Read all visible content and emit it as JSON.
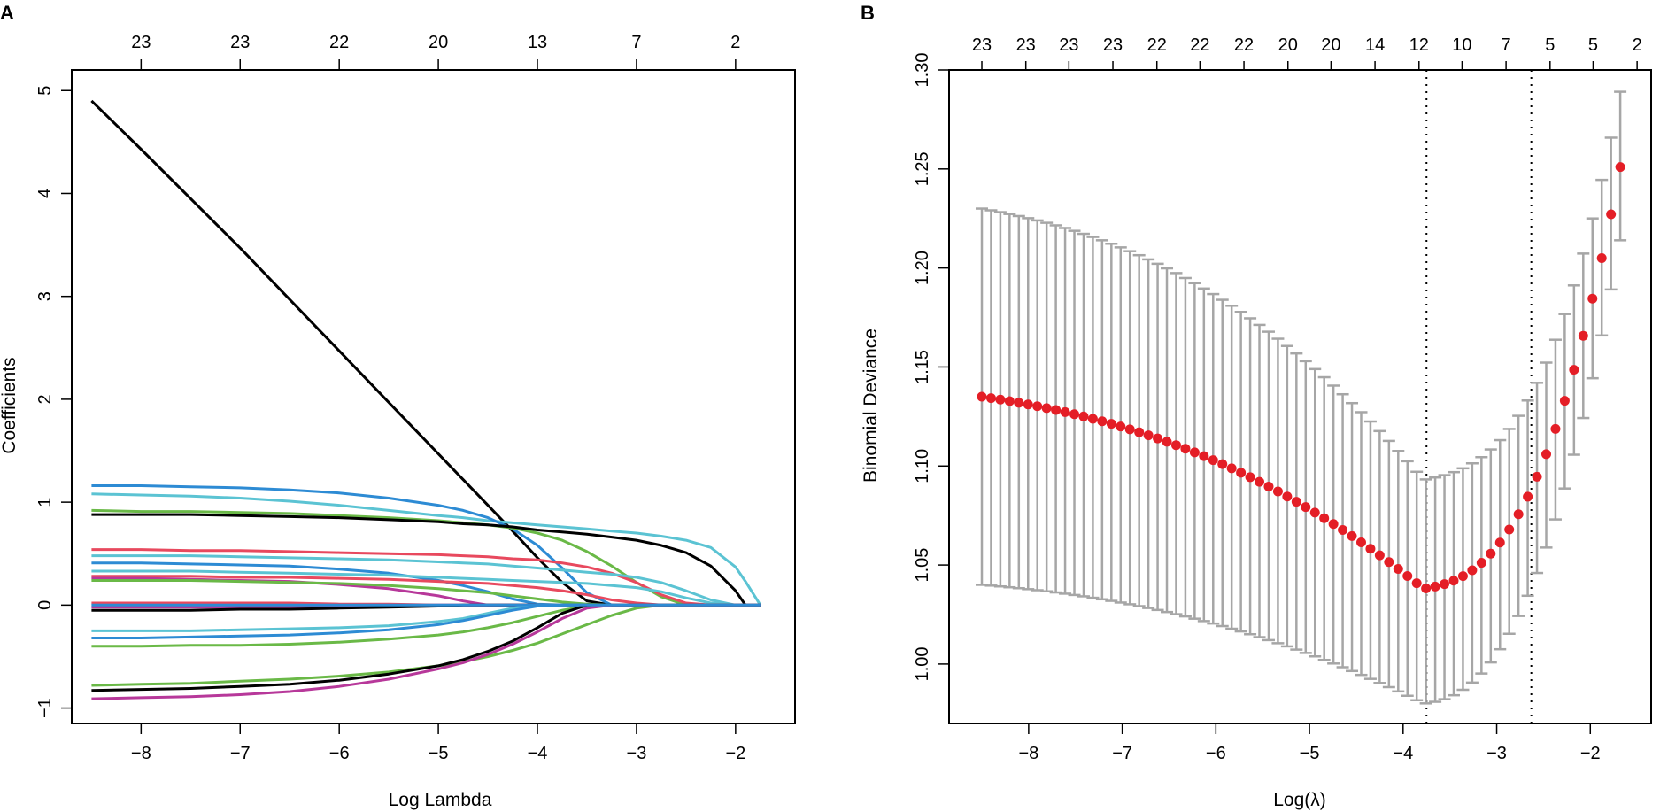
{
  "panels": {
    "a_label": "A",
    "b_label": "B"
  },
  "colors": {
    "black": "#000000",
    "red": "#e8495e",
    "green": "#6ab947",
    "blue": "#2d8bd4",
    "cyan": "#5bc3d3",
    "magenta": "#b7389a",
    "grey": "#a6a6a6",
    "point": "#e41e26"
  },
  "chart_data": [
    {
      "type": "line",
      "panel": "A",
      "title": "",
      "xlabel": "Log Lambda",
      "ylabel": "Coefficients",
      "xlim": [
        -8.7,
        -1.4
      ],
      "ylim": [
        -1.15,
        5.2
      ],
      "xticks": [
        -8,
        -7,
        -6,
        -5,
        -4,
        -3,
        -2
      ],
      "yticks": [
        -1,
        0,
        1,
        2,
        3,
        4,
        5
      ],
      "top_axis": {
        "positions": [
          -8,
          -7,
          -6,
          -5,
          -4,
          -3,
          -2
        ],
        "labels": [
          "23",
          "23",
          "22",
          "20",
          "13",
          "7",
          "2"
        ]
      },
      "x": [
        -8.5,
        -8.0,
        -7.5,
        -7.0,
        -6.5,
        -6.0,
        -5.5,
        -5.0,
        -4.75,
        -4.5,
        -4.25,
        -4.0,
        -3.75,
        -3.5,
        -3.25,
        -3.0,
        -2.75,
        -2.5,
        -2.25,
        -2.0,
        -1.9,
        -1.75
      ],
      "series": [
        {
          "name": "s1",
          "color": "black",
          "values": [
            4.9,
            4.43,
            3.95,
            3.47,
            2.97,
            2.47,
            1.97,
            1.47,
            1.22,
            0.97,
            0.72,
            0.46,
            0.22,
            0.04,
            0,
            0,
            0,
            0,
            0,
            0,
            0,
            0
          ]
        },
        {
          "name": "s2",
          "color": "cyan",
          "values": [
            1.08,
            1.07,
            1.06,
            1.04,
            1.01,
            0.97,
            0.92,
            0.87,
            0.85,
            0.82,
            0.8,
            0.78,
            0.76,
            0.74,
            0.72,
            0.7,
            0.67,
            0.63,
            0.56,
            0.37,
            0.23,
            0
          ]
        },
        {
          "name": "s3",
          "color": "blue",
          "values": [
            1.16,
            1.16,
            1.15,
            1.14,
            1.12,
            1.09,
            1.04,
            0.97,
            0.92,
            0.85,
            0.74,
            0.58,
            0.36,
            0.12,
            0,
            0,
            0,
            0,
            0,
            0,
            0,
            0
          ]
        },
        {
          "name": "s4",
          "color": "green",
          "values": [
            0.92,
            0.91,
            0.91,
            0.9,
            0.89,
            0.87,
            0.85,
            0.82,
            0.8,
            0.78,
            0.75,
            0.7,
            0.63,
            0.52,
            0.38,
            0.22,
            0.08,
            0,
            0,
            0,
            0,
            0
          ]
        },
        {
          "name": "s5",
          "color": "black",
          "values": [
            0.88,
            0.88,
            0.88,
            0.87,
            0.86,
            0.85,
            0.83,
            0.81,
            0.79,
            0.78,
            0.76,
            0.73,
            0.71,
            0.69,
            0.66,
            0.63,
            0.58,
            0.51,
            0.38,
            0.14,
            0,
            0
          ]
        },
        {
          "name": "s6",
          "color": "red",
          "values": [
            0.54,
            0.54,
            0.53,
            0.53,
            0.52,
            0.51,
            0.5,
            0.49,
            0.48,
            0.47,
            0.45,
            0.44,
            0.41,
            0.37,
            0.31,
            0.22,
            0.1,
            0.02,
            0,
            0,
            0,
            0
          ]
        },
        {
          "name": "s7",
          "color": "cyan",
          "values": [
            0.48,
            0.48,
            0.48,
            0.47,
            0.46,
            0.45,
            0.44,
            0.42,
            0.41,
            0.4,
            0.38,
            0.36,
            0.34,
            0.32,
            0.3,
            0.27,
            0.22,
            0.14,
            0.05,
            0,
            0,
            0
          ]
        },
        {
          "name": "s8",
          "color": "blue",
          "values": [
            0.41,
            0.41,
            0.4,
            0.39,
            0.38,
            0.35,
            0.31,
            0.24,
            0.19,
            0.13,
            0.06,
            0.01,
            0,
            0,
            0,
            0,
            0,
            0,
            0,
            0,
            0,
            0
          ]
        },
        {
          "name": "s9",
          "color": "cyan",
          "values": [
            0.33,
            0.33,
            0.33,
            0.32,
            0.31,
            0.3,
            0.29,
            0.27,
            0.26,
            0.25,
            0.24,
            0.23,
            0.22,
            0.21,
            0.19,
            0.17,
            0.13,
            0.07,
            0.02,
            0,
            0,
            0
          ]
        },
        {
          "name": "s10",
          "color": "red",
          "values": [
            0.28,
            0.28,
            0.28,
            0.27,
            0.27,
            0.26,
            0.25,
            0.23,
            0.22,
            0.21,
            0.19,
            0.17,
            0.14,
            0.1,
            0.05,
            0.02,
            0,
            0,
            0,
            0,
            0,
            0
          ]
        },
        {
          "name": "s11",
          "color": "magenta",
          "values": [
            0.26,
            0.26,
            0.25,
            0.24,
            0.23,
            0.2,
            0.16,
            0.09,
            0.04,
            0,
            0,
            0,
            0,
            0,
            0,
            0,
            0,
            0,
            0,
            0,
            0,
            0
          ]
        },
        {
          "name": "s12",
          "color": "green",
          "values": [
            0.24,
            0.24,
            0.24,
            0.23,
            0.22,
            0.21,
            0.19,
            0.16,
            0.14,
            0.12,
            0.09,
            0.06,
            0.03,
            0.01,
            0,
            0,
            0,
            0,
            0,
            0,
            0,
            0
          ]
        },
        {
          "name": "s13",
          "color": "red",
          "values": [
            0.02,
            0.02,
            0.02,
            0.02,
            0.02,
            0.01,
            0.01,
            0,
            0,
            0,
            0,
            0,
            0,
            0,
            0,
            0,
            0,
            0,
            0,
            0,
            0,
            0
          ]
        },
        {
          "name": "s14",
          "color": "magenta",
          "values": [
            -0.02,
            -0.02,
            -0.02,
            -0.02,
            -0.02,
            -0.01,
            -0.01,
            0,
            0,
            0,
            0,
            0,
            0,
            0,
            0,
            0,
            0,
            0,
            0,
            0,
            0,
            0
          ]
        },
        {
          "name": "s15",
          "color": "black",
          "values": [
            -0.05,
            -0.05,
            -0.05,
            -0.04,
            -0.04,
            -0.03,
            -0.02,
            -0.01,
            0,
            0,
            0,
            0,
            0,
            0,
            0,
            0,
            0,
            0,
            0,
            0,
            0,
            0
          ]
        },
        {
          "name": "s16",
          "color": "cyan",
          "values": [
            -0.25,
            -0.25,
            -0.25,
            -0.24,
            -0.23,
            -0.22,
            -0.2,
            -0.16,
            -0.13,
            -0.08,
            -0.03,
            0,
            0,
            0,
            0,
            0,
            0,
            0,
            0,
            0,
            0,
            0
          ]
        },
        {
          "name": "s17",
          "color": "blue",
          "values": [
            -0.32,
            -0.32,
            -0.31,
            -0.3,
            -0.29,
            -0.27,
            -0.24,
            -0.19,
            -0.15,
            -0.1,
            -0.05,
            -0.01,
            0,
            0,
            0,
            0,
            0,
            0,
            0,
            0,
            0,
            0
          ]
        },
        {
          "name": "s18",
          "color": "green",
          "values": [
            -0.4,
            -0.4,
            -0.39,
            -0.39,
            -0.38,
            -0.36,
            -0.33,
            -0.29,
            -0.26,
            -0.22,
            -0.17,
            -0.11,
            -0.05,
            -0.01,
            0,
            0,
            0,
            0,
            0,
            0,
            0,
            0
          ]
        },
        {
          "name": "s19",
          "color": "green",
          "values": [
            -0.78,
            -0.77,
            -0.76,
            -0.74,
            -0.72,
            -0.69,
            -0.65,
            -0.59,
            -0.55,
            -0.5,
            -0.44,
            -0.37,
            -0.28,
            -0.19,
            -0.1,
            -0.03,
            0,
            0,
            0,
            0,
            0,
            0
          ]
        },
        {
          "name": "s20",
          "color": "black",
          "values": [
            -0.83,
            -0.82,
            -0.81,
            -0.79,
            -0.77,
            -0.73,
            -0.67,
            -0.59,
            -0.53,
            -0.45,
            -0.35,
            -0.22,
            -0.08,
            0,
            0,
            0,
            0,
            0,
            0,
            0,
            0,
            0
          ]
        },
        {
          "name": "s21",
          "color": "magenta",
          "values": [
            -0.91,
            -0.9,
            -0.89,
            -0.87,
            -0.84,
            -0.79,
            -0.72,
            -0.62,
            -0.56,
            -0.48,
            -0.38,
            -0.26,
            -0.13,
            -0.03,
            0,
            0,
            0,
            0,
            0,
            0,
            0,
            0
          ]
        },
        {
          "name": "s22",
          "color": "blue",
          "values": [
            0,
            0,
            0,
            0,
            0,
            0,
            0,
            0,
            0,
            0,
            0,
            0,
            0,
            0,
            0,
            0,
            0,
            0,
            0,
            0,
            0,
            0
          ]
        }
      ]
    },
    {
      "type": "scatter",
      "panel": "B",
      "title": "",
      "xlabel": "Log(λ)",
      "ylabel": "Binomial Deviance",
      "xlim": [
        -8.85,
        -1.35
      ],
      "ylim": [
        0.97,
        1.3
      ],
      "xticks": [
        -8,
        -7,
        -6,
        -5,
        -4,
        -3,
        -2
      ],
      "yticks": [
        1.0,
        1.05,
        1.1,
        1.15,
        1.2,
        1.25,
        1.3
      ],
      "ytick_labels": [
        "1.00",
        "1.05",
        "1.10",
        "1.15",
        "1.20",
        "1.25",
        "1.30"
      ],
      "top_axis": {
        "positions": [
          -8.5,
          -8.03,
          -7.57,
          -7.1,
          -6.63,
          -6.17,
          -5.7,
          -5.23,
          -4.77,
          -4.3,
          -3.83,
          -3.37,
          -2.9,
          -2.43,
          -1.97,
          -1.5
        ],
        "labels": [
          "23",
          "23",
          "23",
          "23",
          "22",
          "22",
          "22",
          "20",
          "20",
          "14",
          "12",
          "10",
          "7",
          "5",
          "5",
          "2"
        ]
      },
      "vlines": [
        -3.75,
        -2.63
      ],
      "points": {
        "x_start": -8.5,
        "x_end": -1.68,
        "count": 70,
        "min_x": -3.78,
        "min_y": 1.038,
        "left_y": 1.135,
        "right_y": 1.251,
        "lower_se_left": 1.04,
        "lower_se_min": 0.98,
        "upper_se_left": 1.23,
        "upper_se_min": 1.093,
        "upper_se_right": 1.289,
        "lower_se_right": 1.214
      }
    }
  ]
}
